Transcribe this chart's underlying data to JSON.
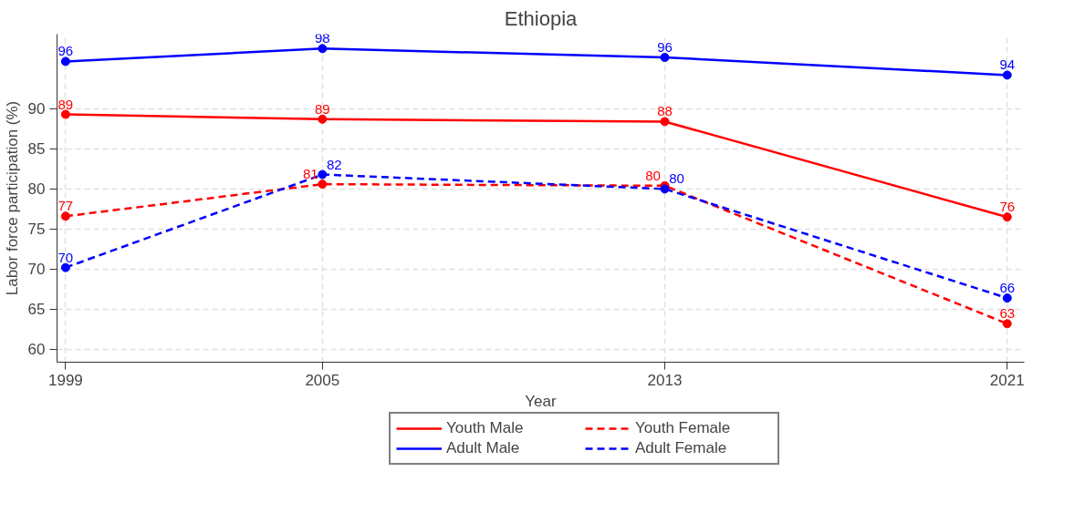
{
  "chart_data": {
    "type": "line",
    "title": "Ethiopia",
    "xlabel": "Year",
    "ylabel": "Labor force participation (%)",
    "x": [
      1999,
      2005,
      2013,
      2021
    ],
    "xlim": [
      1998.8,
      2021.4
    ],
    "xticks": [
      1999,
      2005,
      2013,
      2021
    ],
    "ylim": [
      58.4,
      99.3
    ],
    "yticks": [
      60,
      65,
      70,
      75,
      80,
      85,
      90
    ],
    "grid": true,
    "legend": "bottom",
    "marker": "circle",
    "series": [
      {
        "name": "Youth Male",
        "color": "#ff0000",
        "line_style": "solid",
        "values": [
          89.3,
          88.7,
          88.4,
          76.5
        ],
        "value_labels": [
          "89",
          "89",
          "88",
          "76"
        ]
      },
      {
        "name": "Youth Female",
        "color": "#ff0000",
        "line_style": "dashed",
        "values": [
          76.6,
          80.6,
          80.4,
          63.2
        ],
        "value_labels": [
          "77",
          "81",
          "80",
          "63"
        ]
      },
      {
        "name": "Adult Male",
        "color": "#0000ff",
        "line_style": "solid",
        "values": [
          95.9,
          97.5,
          96.4,
          94.2
        ],
        "value_labels": [
          "96",
          "98",
          "96",
          "94"
        ]
      },
      {
        "name": "Adult Female",
        "color": "#0000ff",
        "line_style": "dashed",
        "values": [
          70.2,
          81.8,
          80.0,
          66.4
        ],
        "value_labels": [
          "70",
          "82",
          "80",
          "66"
        ]
      }
    ]
  }
}
